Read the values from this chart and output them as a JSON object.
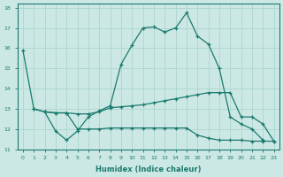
{
  "xlabel": "Humidex (Indice chaleur)",
  "bg_color": "#cce8e4",
  "grid_color": "#b0d8d0",
  "line_color": "#1a7a6e",
  "xtick_labels": [
    "0",
    "1",
    "2",
    "3",
    "4",
    "5",
    "6",
    "7",
    "8",
    "9",
    "10",
    "11",
    "12",
    "13",
    "14",
    "15",
    "16",
    "17",
    "18",
    "19",
    "20",
    "21",
    "22",
    "23"
  ],
  "ytick_labels": [
    "11",
    "12",
    "13",
    "14",
    "15",
    "16",
    "17",
    "18"
  ],
  "series": [
    {
      "x": [
        0,
        1,
        2,
        3,
        4,
        5,
        6,
        7,
        8,
        9,
        10,
        11,
        12,
        13,
        14,
        15,
        16,
        17,
        18,
        19,
        20,
        21,
        22
      ],
      "y": [
        15.9,
        13.0,
        12.85,
        11.9,
        11.45,
        11.9,
        12.6,
        12.9,
        13.15,
        15.2,
        16.15,
        17.0,
        17.05,
        16.8,
        17.0,
        17.75,
        16.6,
        16.2,
        15.0,
        12.6,
        12.25,
        12.0,
        11.45
      ]
    },
    {
      "x": [
        2,
        3,
        4,
        5,
        6,
        7,
        8,
        9,
        10,
        11,
        12,
        13,
        14,
        15,
        16,
        17,
        18,
        19,
        20,
        21,
        22,
        23
      ],
      "y": [
        12.85,
        12.8,
        12.8,
        12.0,
        12.0,
        12.0,
        12.05,
        12.05,
        12.05,
        12.05,
        12.05,
        12.05,
        12.05,
        12.05,
        11.7,
        11.55,
        11.45,
        11.45,
        11.45,
        11.4,
        11.4,
        11.4
      ]
    },
    {
      "x": [
        1,
        2,
        3,
        4,
        5,
        6,
        7,
        8,
        9,
        10,
        11,
        12,
        13,
        14,
        15,
        16,
        17,
        18,
        19,
        20,
        21,
        22,
        23
      ],
      "y": [
        13.0,
        12.85,
        12.8,
        12.8,
        12.75,
        12.75,
        12.85,
        13.05,
        13.1,
        13.15,
        13.2,
        13.3,
        13.4,
        13.5,
        13.6,
        13.7,
        13.8,
        13.8,
        13.8,
        12.6,
        12.6,
        12.25,
        11.4
      ]
    }
  ]
}
